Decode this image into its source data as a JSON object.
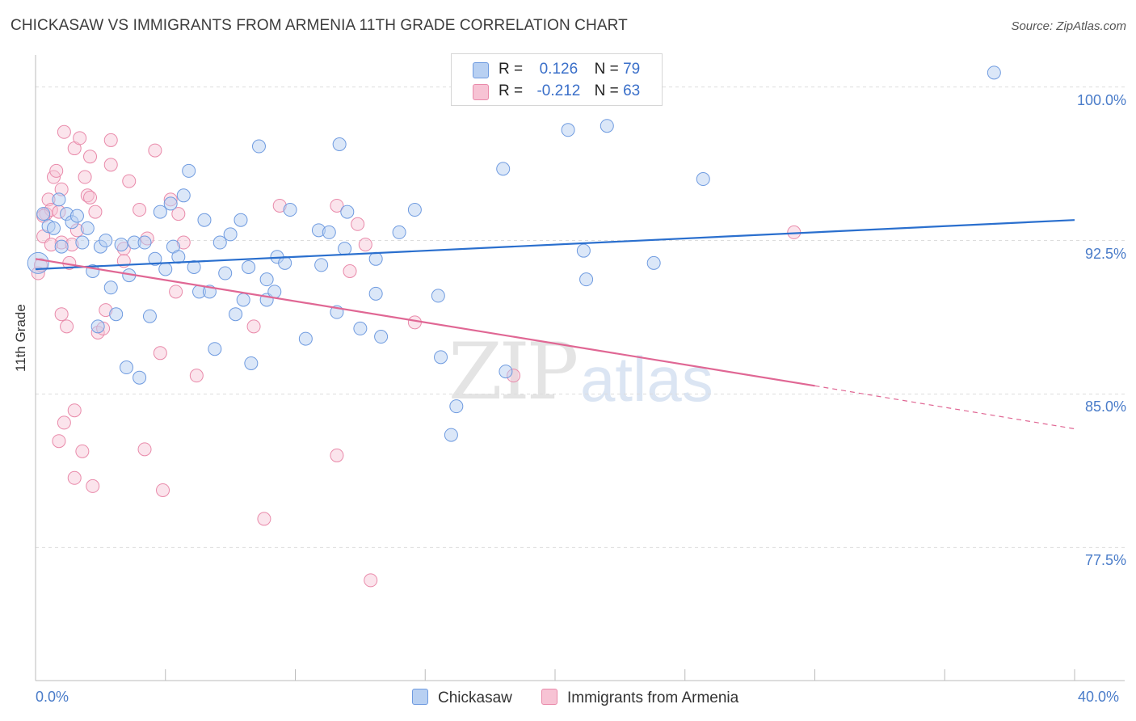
{
  "title": "CHICKASAW VS IMMIGRANTS FROM ARMENIA 11TH GRADE CORRELATION CHART",
  "source": "Source: ZipAtlas.com",
  "watermark": {
    "zip": "ZIP",
    "atlas": "atlas"
  },
  "legend": {
    "series1": {
      "r_label": "R =",
      "r_value": "0.126",
      "n_label": "N =",
      "n_value": "79"
    },
    "series2": {
      "r_label": "R =",
      "r_value": "-0.212",
      "n_label": "N =",
      "n_value": "63"
    }
  },
  "bottom_legend": {
    "series1": "Chickasaw",
    "series2": "Immigrants from Armenia"
  },
  "colors": {
    "blue_fill": "#b8d0f2",
    "blue_stroke": "#6f9be0",
    "blue_line": "#2a6fce",
    "pink_fill": "#f7c3d4",
    "pink_stroke": "#e98aaa",
    "pink_line": "#e06794",
    "grid": "#dddddd",
    "label": "#4a7cc9"
  },
  "chart_data": {
    "type": "scatter",
    "title": "CHICKASAW VS IMMIGRANTS FROM ARMENIA 11TH GRADE CORRELATION CHART",
    "xlabel": "",
    "ylabel": "11th Grade",
    "xlim": [
      0,
      40
    ],
    "ylim": [
      71,
      101.8
    ],
    "x_tick_labels": [
      "0.0%",
      "40.0%"
    ],
    "y_ticks": [
      77.5,
      85.0,
      92.5,
      100.0
    ],
    "y_tick_labels": [
      "77.5%",
      "85.0%",
      "92.5%",
      "100.0%"
    ],
    "grid": true,
    "legend_position": "top-center",
    "series": [
      {
        "name": "Chickasaw",
        "trend": {
          "x": [
            0,
            40
          ],
          "y": [
            91.1,
            93.5
          ]
        },
        "points": [
          [
            0.1,
            91.4
          ],
          [
            0.3,
            93.8
          ],
          [
            0.5,
            93.2
          ],
          [
            0.7,
            93.1
          ],
          [
            0.9,
            94.5
          ],
          [
            1.0,
            92.2
          ],
          [
            1.2,
            93.8
          ],
          [
            1.4,
            93.4
          ],
          [
            1.6,
            93.7
          ],
          [
            1.8,
            92.4
          ],
          [
            2.0,
            93.1
          ],
          [
            2.2,
            91.0
          ],
          [
            2.4,
            88.3
          ],
          [
            2.5,
            92.2
          ],
          [
            2.7,
            92.5
          ],
          [
            2.9,
            90.2
          ],
          [
            3.1,
            88.9
          ],
          [
            3.3,
            92.3
          ],
          [
            3.5,
            86.3
          ],
          [
            3.6,
            90.8
          ],
          [
            3.8,
            92.4
          ],
          [
            4.0,
            85.8
          ],
          [
            4.2,
            92.4
          ],
          [
            4.4,
            88.8
          ],
          [
            4.6,
            91.6
          ],
          [
            4.8,
            93.9
          ],
          [
            5.0,
            91.1
          ],
          [
            5.2,
            94.3
          ],
          [
            5.3,
            92.2
          ],
          [
            5.5,
            91.7
          ],
          [
            5.7,
            94.7
          ],
          [
            5.9,
            95.9
          ],
          [
            6.1,
            91.2
          ],
          [
            6.3,
            90.0
          ],
          [
            6.5,
            93.5
          ],
          [
            6.7,
            90.0
          ],
          [
            6.9,
            87.2
          ],
          [
            7.1,
            92.4
          ],
          [
            7.3,
            90.9
          ],
          [
            7.5,
            92.8
          ],
          [
            7.7,
            88.9
          ],
          [
            7.9,
            93.5
          ],
          [
            8.0,
            89.6
          ],
          [
            8.2,
            91.2
          ],
          [
            8.3,
            86.5
          ],
          [
            8.6,
            97.1
          ],
          [
            8.9,
            90.6
          ],
          [
            8.9,
            89.6
          ],
          [
            9.2,
            90.0
          ],
          [
            9.3,
            91.7
          ],
          [
            9.6,
            91.4
          ],
          [
            9.8,
            94.0
          ],
          [
            10.4,
            87.7
          ],
          [
            10.9,
            93.0
          ],
          [
            11.0,
            91.3
          ],
          [
            11.3,
            92.9
          ],
          [
            11.6,
            89.0
          ],
          [
            11.7,
            97.2
          ],
          [
            11.9,
            92.1
          ],
          [
            12.0,
            93.9
          ],
          [
            12.5,
            88.2
          ],
          [
            13.1,
            89.9
          ],
          [
            13.1,
            91.6
          ],
          [
            13.3,
            87.8
          ],
          [
            14.0,
            92.9
          ],
          [
            14.6,
            94.0
          ],
          [
            15.5,
            89.8
          ],
          [
            15.6,
            86.8
          ],
          [
            16.0,
            83.0
          ],
          [
            16.2,
            84.4
          ],
          [
            18.0,
            96.0
          ],
          [
            18.1,
            86.1
          ],
          [
            20.5,
            97.9
          ],
          [
            21.1,
            92.0
          ],
          [
            21.2,
            90.6
          ],
          [
            22.0,
            98.1
          ],
          [
            23.8,
            91.4
          ],
          [
            25.7,
            95.5
          ],
          [
            36.9,
            100.7
          ]
        ]
      },
      {
        "name": "Immigrants from Armenia",
        "trend": {
          "x": [
            0,
            30
          ],
          "y": [
            91.6,
            85.4
          ]
        },
        "trend_dashed": {
          "x": [
            30,
            40
          ],
          "y": [
            85.4,
            83.3
          ]
        },
        "points": [
          [
            0.1,
            90.9
          ],
          [
            0.2,
            91.3
          ],
          [
            0.3,
            92.7
          ],
          [
            0.4,
            93.8
          ],
          [
            0.5,
            94.5
          ],
          [
            0.6,
            94.0
          ],
          [
            0.7,
            95.6
          ],
          [
            0.8,
            95.9
          ],
          [
            0.9,
            93.9
          ],
          [
            0.9,
            82.7
          ],
          [
            1.0,
            95.0
          ],
          [
            1.0,
            92.4
          ],
          [
            1.1,
            97.8
          ],
          [
            1.1,
            83.6
          ],
          [
            1.2,
            88.3
          ],
          [
            1.3,
            91.4
          ],
          [
            1.4,
            92.3
          ],
          [
            1.5,
            97.0
          ],
          [
            1.5,
            84.2
          ],
          [
            1.5,
            80.9
          ],
          [
            1.6,
            93.0
          ],
          [
            1.7,
            97.5
          ],
          [
            1.8,
            82.2
          ],
          [
            1.9,
            95.6
          ],
          [
            2.0,
            94.7
          ],
          [
            2.1,
            96.6
          ],
          [
            2.1,
            94.6
          ],
          [
            2.2,
            80.5
          ],
          [
            2.3,
            93.9
          ],
          [
            2.4,
            88.0
          ],
          [
            2.6,
            88.2
          ],
          [
            2.7,
            89.1
          ],
          [
            2.9,
            97.4
          ],
          [
            2.9,
            96.2
          ],
          [
            3.4,
            92.1
          ],
          [
            3.4,
            91.5
          ],
          [
            3.6,
            95.4
          ],
          [
            4.0,
            94.0
          ],
          [
            4.2,
            82.3
          ],
          [
            4.3,
            92.6
          ],
          [
            4.6,
            96.9
          ],
          [
            4.8,
            87.0
          ],
          [
            4.9,
            80.3
          ],
          [
            5.2,
            94.5
          ],
          [
            5.4,
            90.0
          ],
          [
            5.5,
            93.8
          ],
          [
            5.7,
            92.4
          ],
          [
            6.2,
            85.9
          ],
          [
            8.4,
            88.3
          ],
          [
            8.8,
            78.9
          ],
          [
            9.4,
            94.2
          ],
          [
            11.6,
            94.2
          ],
          [
            11.6,
            82.0
          ],
          [
            12.1,
            91.0
          ],
          [
            12.4,
            93.3
          ],
          [
            12.7,
            92.3
          ],
          [
            12.9,
            75.9
          ],
          [
            14.6,
            88.5
          ],
          [
            18.4,
            85.9
          ],
          [
            29.2,
            92.9
          ],
          [
            0.3,
            93.7
          ],
          [
            0.6,
            92.3
          ],
          [
            1.0,
            88.9
          ]
        ]
      }
    ]
  }
}
